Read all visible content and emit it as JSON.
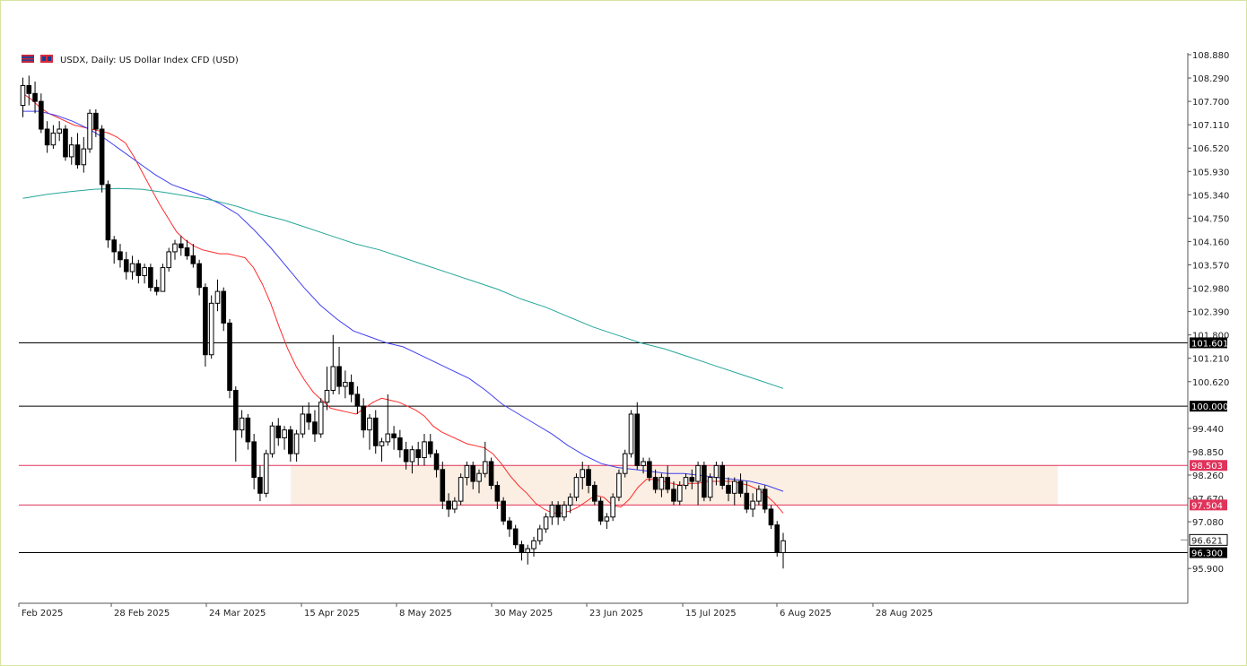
{
  "chart_data": {
    "type": "candlestick",
    "symbol": "USDX",
    "timeframe": "Daily",
    "description": "US Dollar Index CFD (USD)",
    "header_label": "USDX, Daily:  US Dollar Index CFD (USD)",
    "ylim": [
      95.61,
      108.88
    ],
    "y_ticks": [
      "108.880",
      "108.290",
      "107.700",
      "107.110",
      "106.520",
      "105.930",
      "105.340",
      "104.750",
      "104.160",
      "103.570",
      "102.980",
      "102.390",
      "101.800",
      "101.210",
      "100.620",
      "99.440",
      "98.850",
      "98.260",
      "97.670",
      "97.080",
      "95.900"
    ],
    "x_tick_labels": [
      "Feb 2025",
      "28 Feb 2025",
      "24 Mar 2025",
      "15 Apr 2025",
      "8 May 2025",
      "30 May 2025",
      "23 Jun 2025",
      "15 Jul 2025",
      "6 Aug 2025",
      "28 Aug 2025"
    ],
    "horizontal_levels": [
      {
        "value": 101.601,
        "label": "101.601",
        "color": "#000000"
      },
      {
        "value": 100.0,
        "label": "100.000",
        "color": "#000000"
      },
      {
        "value": 98.503,
        "label": "98.503",
        "color": "#e0325a"
      },
      {
        "value": 97.504,
        "label": "97.504",
        "color": "#e0325a"
      },
      {
        "value": 96.3,
        "label": "96.300",
        "color": "#000000"
      }
    ],
    "current_price": {
      "value": 96.621,
      "label": "96.621"
    },
    "range_zone": {
      "from": 97.504,
      "to": 98.503,
      "color": "#fbeee3"
    },
    "moving_averages": [
      {
        "color": "#ff2a2a",
        "values": [
          107.9,
          107.75,
          107.55,
          107.4,
          107.3,
          107.2,
          107.1,
          107.05,
          107.0,
          106.95,
          106.9,
          106.8,
          106.65,
          106.3,
          105.9,
          105.5,
          105.1,
          104.75,
          104.4,
          104.2,
          104.05,
          103.95,
          103.9,
          103.85,
          103.85,
          103.8,
          103.75,
          103.5,
          103.1,
          102.6,
          102.0,
          101.45,
          101.0,
          100.65,
          100.35,
          100.15,
          99.95,
          99.9,
          99.85,
          99.8,
          99.95,
          100.1,
          100.2,
          100.15,
          100.1,
          100.0,
          99.9,
          99.75,
          99.5,
          99.35,
          99.25,
          99.15,
          99.05,
          99.0,
          98.95,
          98.8,
          98.55,
          98.25,
          98.0,
          97.8,
          97.55,
          97.4,
          97.3,
          97.3,
          97.35,
          97.45,
          97.6,
          97.75,
          97.7,
          97.5,
          97.45,
          97.65,
          97.95,
          98.15,
          98.15,
          98.1,
          98.05,
          98.0,
          98.05,
          98.05,
          98.1,
          98.1,
          98.1,
          98.1,
          98.05,
          98.0,
          97.9,
          97.75,
          97.55,
          97.3
        ]
      },
      {
        "color": "#4040ee",
        "values": [
          107.45,
          107.45,
          107.35,
          107.2,
          107.0,
          106.75,
          106.45,
          106.15,
          105.85,
          105.6,
          105.45,
          105.3,
          105.1,
          104.85,
          104.45,
          104.0,
          103.5,
          103.0,
          102.55,
          102.2,
          101.9,
          101.75,
          101.6,
          101.5,
          101.3,
          101.1,
          100.9,
          100.7,
          100.4,
          100.05,
          99.8,
          99.55,
          99.3,
          99.0,
          98.75,
          98.55,
          98.45,
          98.4,
          98.35,
          98.3,
          98.3,
          98.25,
          98.2,
          98.15,
          98.1,
          98.0,
          97.85
        ]
      },
      {
        "color": "#26a69a",
        "values": [
          105.25,
          105.35,
          105.42,
          105.48,
          105.5,
          105.48,
          105.4,
          105.3,
          105.2,
          105.05,
          104.85,
          104.7,
          104.5,
          104.3,
          104.1,
          103.95,
          103.75,
          103.55,
          103.35,
          103.15,
          102.95,
          102.7,
          102.5,
          102.25,
          102.0,
          101.8,
          101.6,
          101.45,
          101.25,
          101.05,
          100.85,
          100.65,
          100.45
        ]
      }
    ],
    "ohlc": [
      [
        107.6,
        108.3,
        107.3,
        108.1
      ],
      [
        108.1,
        108.35,
        107.6,
        107.9
      ],
      [
        107.9,
        108.2,
        107.4,
        107.7
      ],
      [
        107.7,
        107.9,
        106.9,
        107.0
      ],
      [
        107.0,
        107.2,
        106.4,
        106.6
      ],
      [
        106.6,
        107.1,
        106.5,
        106.9
      ],
      [
        106.9,
        107.2,
        106.7,
        107.0
      ],
      [
        107.0,
        107.1,
        106.2,
        106.3
      ],
      [
        106.3,
        106.8,
        106.1,
        106.6
      ],
      [
        106.6,
        106.9,
        106.0,
        106.1
      ],
      [
        106.1,
        106.8,
        105.9,
        106.5
      ],
      [
        106.5,
        107.5,
        106.4,
        107.4
      ],
      [
        107.4,
        107.5,
        106.8,
        107.0
      ],
      [
        107.0,
        107.1,
        105.4,
        105.6
      ],
      [
        105.6,
        105.7,
        104.0,
        104.2
      ],
      [
        104.2,
        104.3,
        103.6,
        103.9
      ],
      [
        103.9,
        104.1,
        103.5,
        103.7
      ],
      [
        103.7,
        103.9,
        103.2,
        103.4
      ],
      [
        103.4,
        103.8,
        103.2,
        103.6
      ],
      [
        103.6,
        103.7,
        103.1,
        103.3
      ],
      [
        103.3,
        103.6,
        103.1,
        103.5
      ],
      [
        103.5,
        103.6,
        102.9,
        103.0
      ],
      [
        103.0,
        103.2,
        102.8,
        102.9
      ],
      [
        102.9,
        103.6,
        102.9,
        103.5
      ],
      [
        103.5,
        104.0,
        103.4,
        103.9
      ],
      [
        103.9,
        104.2,
        103.7,
        104.1
      ],
      [
        104.1,
        104.3,
        103.8,
        104.0
      ],
      [
        104.0,
        104.2,
        103.7,
        103.8
      ],
      [
        103.8,
        104.1,
        103.5,
        103.6
      ],
      [
        103.6,
        103.7,
        102.8,
        103.0
      ],
      [
        103.0,
        103.1,
        101.0,
        101.3
      ],
      [
        101.3,
        102.8,
        101.2,
        102.6
      ],
      [
        102.6,
        103.2,
        102.4,
        102.9
      ],
      [
        102.9,
        103.0,
        101.9,
        102.1
      ],
      [
        102.1,
        102.2,
        100.2,
        100.4
      ],
      [
        100.4,
        100.5,
        98.6,
        99.4
      ],
      [
        99.4,
        99.9,
        99.2,
        99.7
      ],
      [
        99.7,
        99.8,
        98.9,
        99.1
      ],
      [
        99.1,
        99.3,
        97.9,
        98.2
      ],
      [
        98.2,
        98.5,
        97.6,
        97.8
      ],
      [
        97.8,
        98.9,
        97.7,
        98.8
      ],
      [
        98.8,
        99.6,
        98.7,
        99.5
      ],
      [
        99.5,
        99.7,
        99.0,
        99.2
      ],
      [
        99.2,
        99.5,
        98.9,
        99.4
      ],
      [
        99.4,
        99.5,
        98.6,
        98.8
      ],
      [
        98.8,
        99.4,
        98.6,
        99.3
      ],
      [
        99.3,
        100.0,
        99.2,
        99.8
      ],
      [
        99.8,
        100.1,
        99.4,
        99.6
      ],
      [
        99.6,
        99.9,
        99.1,
        99.3
      ],
      [
        99.3,
        100.2,
        99.2,
        100.1
      ],
      [
        100.1,
        101.0,
        99.9,
        100.4
      ],
      [
        100.4,
        101.8,
        100.3,
        101.0
      ],
      [
        101.0,
        101.5,
        100.3,
        100.5
      ],
      [
        100.5,
        100.9,
        100.2,
        100.6
      ],
      [
        100.6,
        100.8,
        100.1,
        100.3
      ],
      [
        100.3,
        100.5,
        99.8,
        100.0
      ],
      [
        100.0,
        100.2,
        99.2,
        99.4
      ],
      [
        99.4,
        99.8,
        98.9,
        99.7
      ],
      [
        99.7,
        99.9,
        98.8,
        99.0
      ],
      [
        99.0,
        99.2,
        98.6,
        99.1
      ],
      [
        99.1,
        100.3,
        99.0,
        99.3
      ],
      [
        99.3,
        99.5,
        98.9,
        99.2
      ],
      [
        99.2,
        99.4,
        98.7,
        98.9
      ],
      [
        98.9,
        99.1,
        98.4,
        98.6
      ],
      [
        98.6,
        99.0,
        98.3,
        98.9
      ],
      [
        98.9,
        99.1,
        98.5,
        98.7
      ],
      [
        98.7,
        99.3,
        98.5,
        99.1
      ],
      [
        99.1,
        99.3,
        98.7,
        98.8
      ],
      [
        98.8,
        98.9,
        98.2,
        98.4
      ],
      [
        98.4,
        98.6,
        97.4,
        97.6
      ],
      [
        97.6,
        97.8,
        97.2,
        97.4
      ],
      [
        97.4,
        97.7,
        97.3,
        97.6
      ],
      [
        97.6,
        98.3,
        97.5,
        98.2
      ],
      [
        98.2,
        98.6,
        98.0,
        98.5
      ],
      [
        98.5,
        98.6,
        97.9,
        98.1
      ],
      [
        98.1,
        98.4,
        97.8,
        98.3
      ],
      [
        98.3,
        99.1,
        98.2,
        98.6
      ],
      [
        98.6,
        98.7,
        97.9,
        98.0
      ],
      [
        98.0,
        98.1,
        97.4,
        97.6
      ],
      [
        97.6,
        97.7,
        97.0,
        97.1
      ],
      [
        97.1,
        97.2,
        96.7,
        96.9
      ],
      [
        96.9,
        97.0,
        96.4,
        96.5
      ],
      [
        96.5,
        96.6,
        96.1,
        96.3
      ],
      [
        96.3,
        96.5,
        96.0,
        96.4
      ],
      [
        96.4,
        96.7,
        96.2,
        96.6
      ],
      [
        96.6,
        97.0,
        96.5,
        96.9
      ],
      [
        96.9,
        97.3,
        96.8,
        97.2
      ],
      [
        97.2,
        97.6,
        97.0,
        97.5
      ],
      [
        97.5,
        97.6,
        97.0,
        97.2
      ],
      [
        97.2,
        97.6,
        97.1,
        97.5
      ],
      [
        97.5,
        97.8,
        97.3,
        97.7
      ],
      [
        97.7,
        98.3,
        97.6,
        98.2
      ],
      [
        98.2,
        98.6,
        97.9,
        98.4
      ],
      [
        98.4,
        98.5,
        97.8,
        98.0
      ],
      [
        98.0,
        98.1,
        97.5,
        97.6
      ],
      [
        97.6,
        97.7,
        97.0,
        97.1
      ],
      [
        97.1,
        97.3,
        96.9,
        97.2
      ],
      [
        97.2,
        97.8,
        97.1,
        97.7
      ],
      [
        97.7,
        98.4,
        97.6,
        98.3
      ],
      [
        98.3,
        98.9,
        98.2,
        98.8
      ],
      [
        98.8,
        99.9,
        98.7,
        99.8
      ],
      [
        99.8,
        100.1,
        98.4,
        98.5
      ],
      [
        98.5,
        98.7,
        98.3,
        98.6
      ],
      [
        98.6,
        98.7,
        98.1,
        98.2
      ],
      [
        98.2,
        98.4,
        97.8,
        97.9
      ],
      [
        97.9,
        98.3,
        97.7,
        98.2
      ],
      [
        98.2,
        98.5,
        97.8,
        97.9
      ],
      [
        97.9,
        98.1,
        97.5,
        97.6
      ],
      [
        97.6,
        98.1,
        97.5,
        98.0
      ],
      [
        98.0,
        98.3,
        97.9,
        98.2
      ],
      [
        98.2,
        98.4,
        97.9,
        98.1
      ],
      [
        98.1,
        98.6,
        97.5,
        98.5
      ],
      [
        98.5,
        98.6,
        97.6,
        97.7
      ],
      [
        97.7,
        98.3,
        97.6,
        98.2
      ],
      [
        98.2,
        98.6,
        98.0,
        98.5
      ],
      [
        98.5,
        98.6,
        97.9,
        98.0
      ],
      [
        98.0,
        98.2,
        97.6,
        97.8
      ],
      [
        97.8,
        98.2,
        97.5,
        98.1
      ],
      [
        98.1,
        98.3,
        97.7,
        97.8
      ],
      [
        97.8,
        98.1,
        97.3,
        97.4
      ],
      [
        97.4,
        97.8,
        97.2,
        97.6
      ],
      [
        97.6,
        98.0,
        97.5,
        97.9
      ],
      [
        97.9,
        98.0,
        97.3,
        97.4
      ],
      [
        97.4,
        97.5,
        96.9,
        97.0
      ],
      [
        97.0,
        97.1,
        96.2,
        96.3
      ],
      [
        96.3,
        96.8,
        95.9,
        96.6
      ]
    ]
  }
}
